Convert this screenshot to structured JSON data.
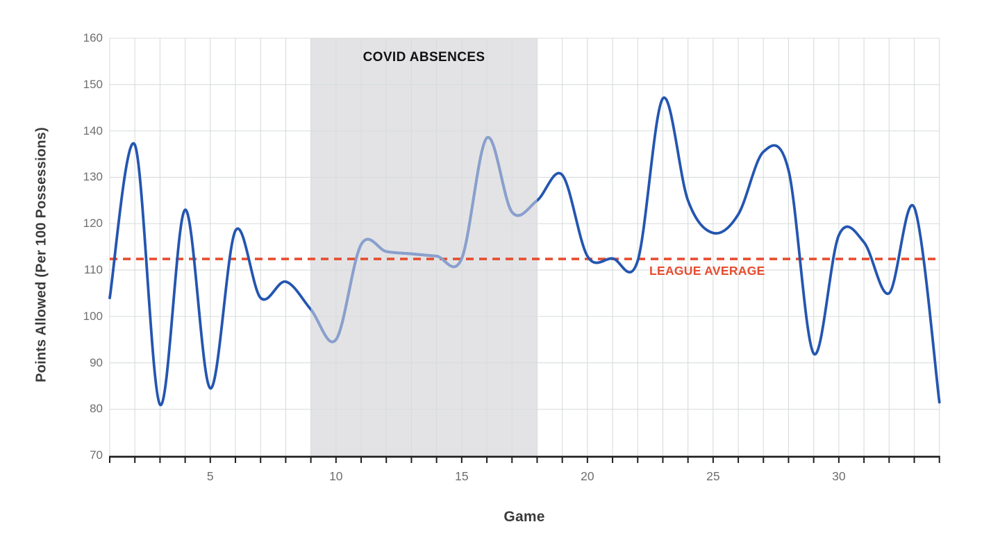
{
  "chart": {
    "y_axis": {
      "label": "Points Allowed (Per 100 Possessions)",
      "ticks": [
        70,
        80,
        90,
        100,
        110,
        120,
        130,
        140,
        150,
        160
      ]
    },
    "x_axis": {
      "label": "Game",
      "labeled_ticks": [
        5,
        10,
        15,
        20,
        25,
        30
      ]
    },
    "annotations": {
      "covid_label": "COVID ABSENCES",
      "league_avg_label": "LEAGUE AVERAGE"
    }
  },
  "chart_data": {
    "type": "line",
    "title": "",
    "xlabel": "Game",
    "ylabel": "Points Allowed (Per 100 Possessions)",
    "xlim": [
      1,
      34
    ],
    "ylim": [
      70,
      160
    ],
    "grid": true,
    "legend_position": "none",
    "x": [
      1,
      2,
      3,
      4,
      5,
      6,
      7,
      8,
      9,
      10,
      11,
      12,
      13,
      14,
      15,
      16,
      17,
      18,
      19,
      20,
      21,
      22,
      23,
      24,
      25,
      26,
      27,
      28,
      29,
      30,
      31,
      32,
      33,
      34
    ],
    "series": [
      {
        "name": "Points Allowed Per 100 Possessions",
        "values": [
          104,
          137,
          81,
          123,
          84.5,
          118.5,
          104,
          107.5,
          101.5,
          95,
          115.5,
          114,
          113.5,
          113,
          112.5,
          138.5,
          122.5,
          125,
          130.5,
          113,
          112.5,
          112,
          147,
          125,
          118,
          122,
          135.5,
          131.5,
          92,
          117.5,
          116,
          105,
          123.5,
          81.5
        ]
      }
    ],
    "reference_line": {
      "label": "LEAGUE AVERAGE",
      "value": 112.4
    },
    "shaded_region": {
      "label": "COVID ABSENCES",
      "from_game": 9,
      "to_game": 18
    }
  },
  "colors": {
    "line": "#2456b0",
    "line_faded": "#8aa0cd",
    "reference": "#e74c2e",
    "region_fill": "#e3e3e5",
    "grid": "#d8dcdc",
    "axis": "#1f1f1f",
    "tick_text": "#6e6e6e",
    "title_text": "#3b3b3b"
  }
}
